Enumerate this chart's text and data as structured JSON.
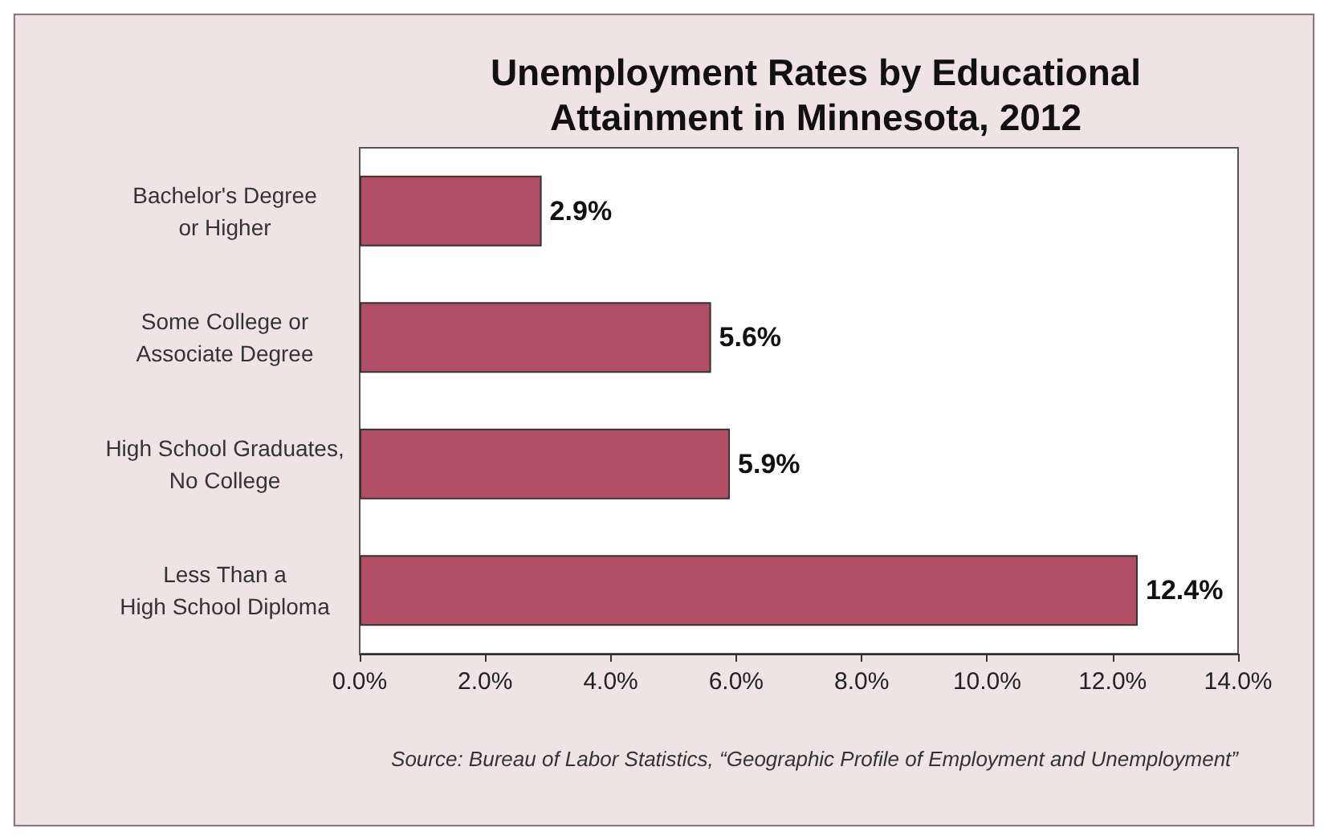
{
  "chart_data": {
    "type": "bar",
    "orientation": "horizontal",
    "title": "Unemployment Rates by Educational\nAttainment in Minnesota, 2012",
    "categories": [
      "Bachelor's Degree\nor Higher",
      "Some College or\nAssociate Degree",
      "High School Graduates,\nNo College",
      "Less Than a\nHigh School Diploma"
    ],
    "values": [
      2.9,
      5.6,
      5.9,
      12.4
    ],
    "color": "#b14d64",
    "value_labels": [
      "2.9%",
      "5.6%",
      "5.9%",
      "12.4%"
    ],
    "xlim": [
      0,
      14
    ],
    "xticks": [
      {
        "value": 0,
        "label": "0.0%"
      },
      {
        "value": 2,
        "label": "2.0%"
      },
      {
        "value": 4,
        "label": "4.0%"
      },
      {
        "value": 6,
        "label": "6.0%"
      },
      {
        "value": 8,
        "label": "8.0%"
      },
      {
        "value": 10,
        "label": "10.0%"
      },
      {
        "value": 12,
        "label": "12.0%"
      },
      {
        "value": 14,
        "label": "14.0%"
      }
    ],
    "grid": false,
    "annotations": [
      "Source: Bureau of Labor Statistics, “Geographic Profile of Employment and Unemployment”"
    ]
  }
}
